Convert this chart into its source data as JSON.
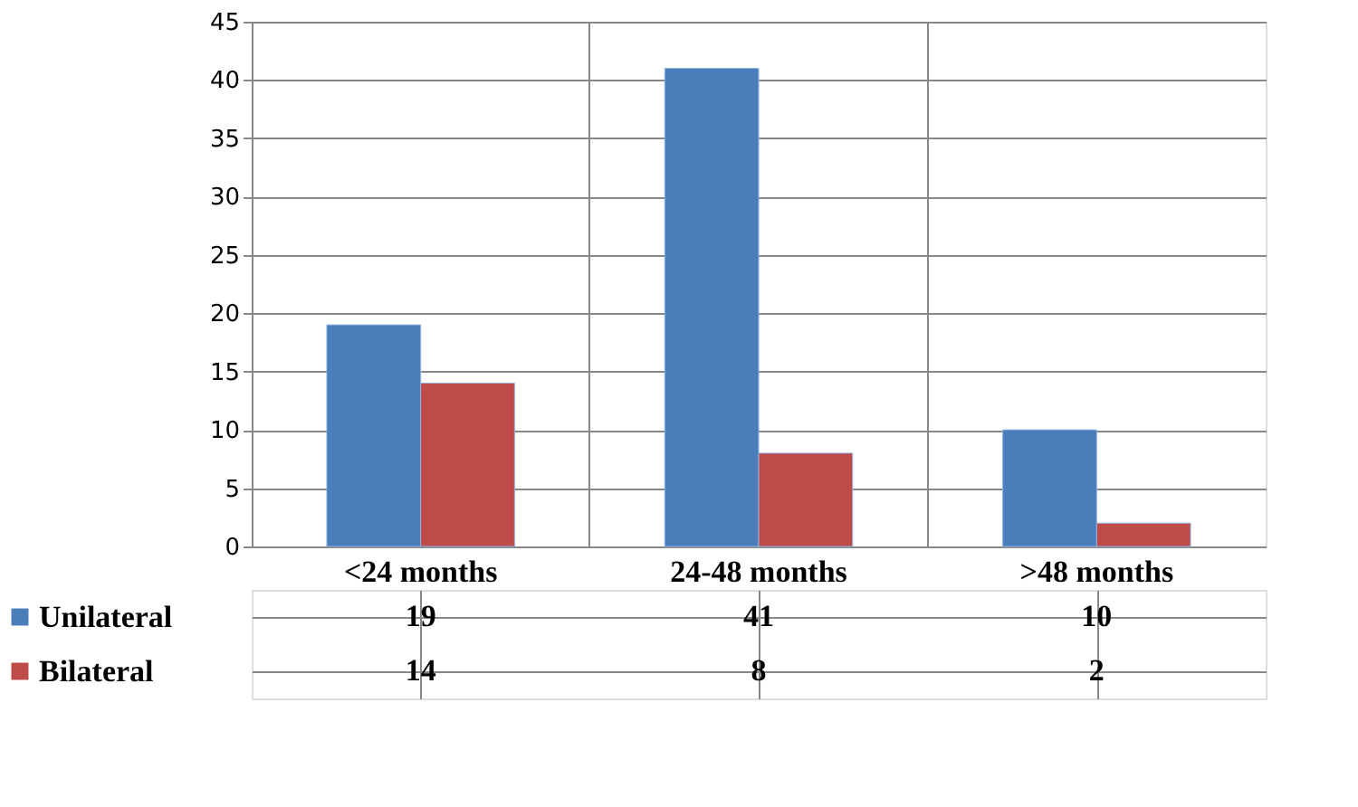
{
  "chart_data": {
    "type": "bar",
    "categories": [
      "<24 months",
      "24-48 months",
      ">48 months"
    ],
    "series": [
      {
        "name": "Unilateral",
        "color": "#4a7ebb",
        "values": [
          19,
          41,
          10
        ]
      },
      {
        "name": "Bilateral",
        "color": "#be4b48",
        "values": [
          14,
          8,
          2
        ]
      }
    ],
    "ylim": [
      0,
      45
    ],
    "yticks": [
      0,
      5,
      10,
      15,
      20,
      25,
      30,
      35,
      40,
      45
    ],
    "grid": "y",
    "data_labels": true,
    "legend": "bottom left"
  }
}
